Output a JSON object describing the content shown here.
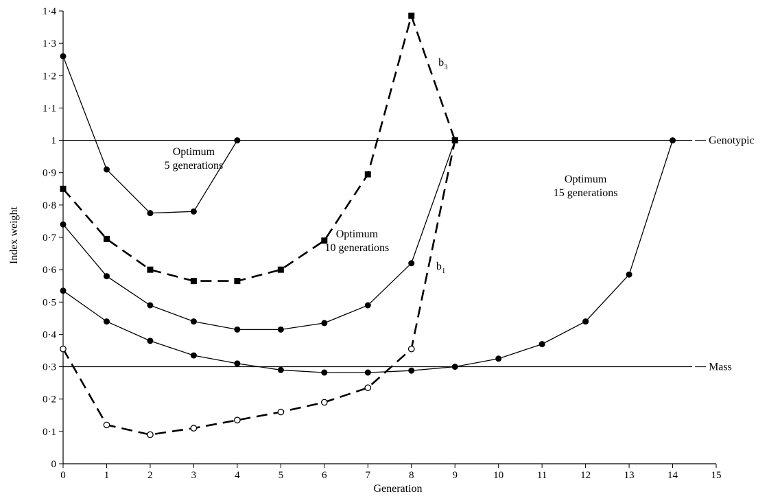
{
  "chart_data": {
    "type": "line",
    "xlabel": "Generation",
    "ylabel": "Index weight",
    "xlim": [
      0,
      15
    ],
    "ylim": [
      0,
      1.4
    ],
    "x_ticks": [
      {
        "value": 0,
        "label": "0"
      },
      {
        "value": 1,
        "label": "1"
      },
      {
        "value": 2,
        "label": "2"
      },
      {
        "value": 3,
        "label": "3"
      },
      {
        "value": 4,
        "label": "4"
      },
      {
        "value": 5,
        "label": "5"
      },
      {
        "value": 6,
        "label": "6"
      },
      {
        "value": 7,
        "label": "7"
      },
      {
        "value": 8,
        "label": "8"
      },
      {
        "value": 9,
        "label": "9"
      },
      {
        "value": 10,
        "label": "10"
      },
      {
        "value": 11,
        "label": "11"
      },
      {
        "value": 12,
        "label": "12"
      },
      {
        "value": 13,
        "label": "13"
      },
      {
        "value": 14,
        "label": "14"
      },
      {
        "value": 15,
        "label": "15"
      }
    ],
    "y_ticks": [
      {
        "value": 0,
        "label": "0"
      },
      {
        "value": 0.1,
        "label": "0·1"
      },
      {
        "value": 0.2,
        "label": "0·2"
      },
      {
        "value": 0.3,
        "label": "0·3"
      },
      {
        "value": 0.4,
        "label": "0·4"
      },
      {
        "value": 0.5,
        "label": "0·5"
      },
      {
        "value": 0.6,
        "label": "0·6"
      },
      {
        "value": 0.7,
        "label": "0·7"
      },
      {
        "value": 0.8,
        "label": "0·8"
      },
      {
        "value": 0.9,
        "label": "0·9"
      },
      {
        "value": 1.0,
        "label": "1"
      },
      {
        "value": 1.1,
        "label": "1·1"
      },
      {
        "value": 1.2,
        "label": "1·2"
      },
      {
        "value": 1.3,
        "label": "1·3"
      },
      {
        "value": 1.4,
        "label": "1·4"
      }
    ],
    "grid": false,
    "reference_lines": [
      {
        "id": "genotypic",
        "label": "Genotypic",
        "y": 1.0
      },
      {
        "id": "mass",
        "label": "Mass",
        "y": 0.3
      }
    ],
    "series": [
      {
        "id": "opt5",
        "style": "solid",
        "marker": "filled-circle",
        "x": [
          0,
          1,
          2,
          3,
          4
        ],
        "y": [
          1.26,
          0.91,
          0.775,
          0.78,
          1.0
        ]
      },
      {
        "id": "b3",
        "style": "dashed",
        "marker": "filled-square",
        "x": [
          0,
          1,
          2,
          3,
          4,
          5,
          6,
          7,
          8,
          9
        ],
        "y": [
          0.85,
          0.695,
          0.6,
          0.565,
          0.565,
          0.6,
          0.69,
          0.895,
          1.385,
          1.0
        ]
      },
      {
        "id": "opt10",
        "style": "solid",
        "marker": "filled-circle",
        "x": [
          0,
          1,
          2,
          3,
          4,
          5,
          6,
          7,
          8,
          9
        ],
        "y": [
          0.74,
          0.58,
          0.49,
          0.44,
          0.415,
          0.415,
          0.435,
          0.49,
          0.62,
          1.0
        ]
      },
      {
        "id": "opt15",
        "style": "solid",
        "marker": "filled-circle",
        "x": [
          0,
          1,
          2,
          3,
          4,
          5,
          6,
          7,
          8,
          9,
          10,
          11,
          12,
          13,
          14
        ],
        "y": [
          0.535,
          0.44,
          0.38,
          0.335,
          0.31,
          0.29,
          0.282,
          0.282,
          0.288,
          0.3,
          0.325,
          0.37,
          0.44,
          0.585,
          1.0
        ]
      },
      {
        "id": "b1",
        "style": "dashed",
        "marker": "open-circle",
        "x": [
          0,
          1,
          2,
          3,
          4,
          5,
          6,
          7,
          8,
          9
        ],
        "y": [
          0.355,
          0.12,
          0.09,
          0.11,
          0.135,
          0.16,
          0.19,
          0.235,
          0.355,
          1.0
        ],
        "markers_at": [
          0,
          1,
          2,
          3,
          4,
          5,
          6,
          7,
          8
        ]
      }
    ],
    "annotations": [
      {
        "id": "opt5-label",
        "lines": [
          "Optimum",
          "5 generations"
        ],
        "x": 3.0,
        "y": 0.955,
        "anchor": "middle"
      },
      {
        "id": "opt10-label",
        "lines": [
          "Optimum",
          "10 generations"
        ],
        "x": 6.75,
        "y": 0.7,
        "anchor": "middle"
      },
      {
        "id": "opt15-label",
        "lines": [
          "Optimum",
          "15 generations"
        ],
        "x": 12.0,
        "y": 0.87,
        "anchor": "middle"
      },
      {
        "id": "b3-label",
        "text": "b",
        "sub": "3",
        "x": 8.62,
        "y": 1.23,
        "anchor": "start"
      },
      {
        "id": "b1-label",
        "text": "b",
        "sub": "1",
        "x": 8.57,
        "y": 0.6,
        "anchor": "start"
      }
    ]
  }
}
